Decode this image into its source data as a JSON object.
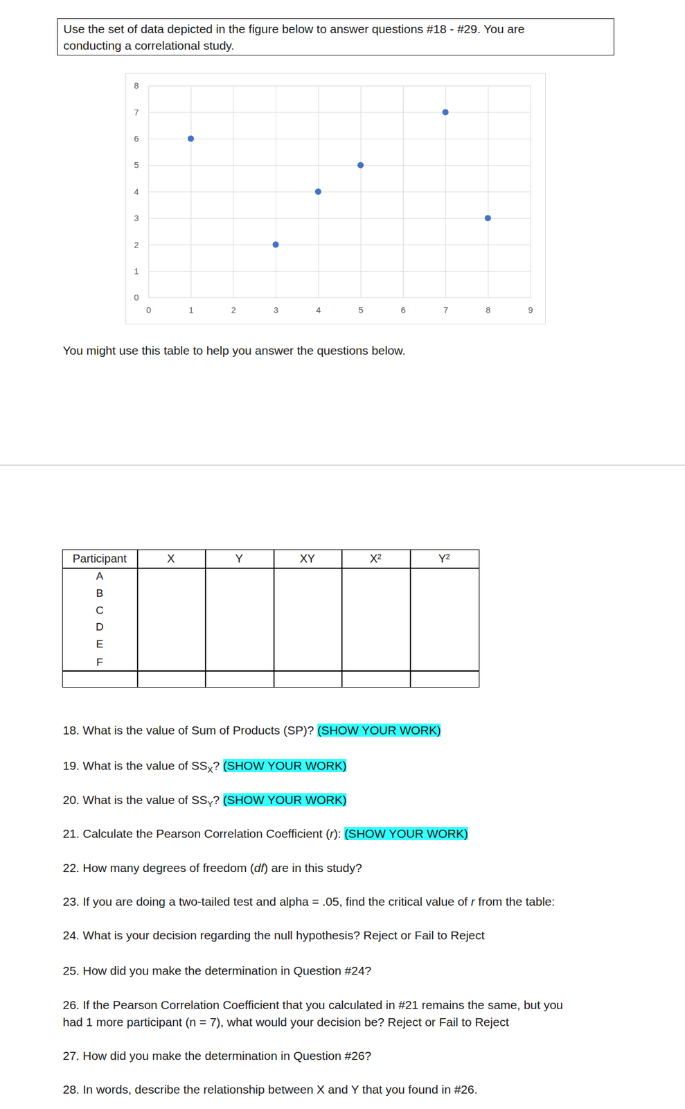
{
  "intro": [
    "Use the set of data depicted in the figure below to answer questions #18 - #29. You are",
    "conducting a correlational study."
  ],
  "chart_data": {
    "type": "scatter",
    "x": [
      1,
      3,
      4,
      5,
      7,
      8
    ],
    "values": [
      6,
      2,
      4,
      5,
      7,
      3
    ],
    "color": "#4472c4",
    "marker": "circle",
    "xlim": [
      0,
      9
    ],
    "ylim": [
      0,
      8
    ],
    "xticks": [
      0,
      1,
      2,
      3,
      4,
      5,
      6,
      7,
      8,
      9
    ],
    "yticks": [
      0,
      1,
      2,
      3,
      4,
      5,
      6,
      7,
      8
    ],
    "grid": true
  },
  "table_note": "You might use this table to help you answer the questions below.",
  "table": {
    "header": [
      "Participant",
      "X",
      "Y",
      "XY",
      "X²",
      "Y²"
    ],
    "rows": [
      [
        "A"
      ],
      [
        "B"
      ],
      [
        "C"
      ],
      [
        "D"
      ],
      [
        "E"
      ],
      [
        "F"
      ]
    ]
  },
  "questions": [
    {
      "lines": [
        [
          {
            "text": "18. What is the value of Sum of Products (SP)? "
          },
          {
            "text": "(SHOW YOUR WORK)",
            "style": "highlight"
          }
        ]
      ]
    },
    {
      "lines": [
        [
          {
            "text": "19. What is the value of SS"
          },
          {
            "text": "X",
            "style": "sub"
          },
          {
            "text": "? "
          },
          {
            "text": "(SHOW YOUR WORK)",
            "style": "highlight"
          }
        ]
      ]
    },
    {
      "lines": [
        [
          {
            "text": "20. What is the value of SS"
          },
          {
            "text": "Y",
            "style": "sub"
          },
          {
            "text": "? "
          },
          {
            "text": "(SHOW YOUR WORK)",
            "style": "highlight"
          }
        ]
      ]
    },
    {
      "lines": [
        [
          {
            "text": "21. Calculate the Pearson Correlation Coefficient ("
          },
          {
            "text": "r",
            "style": "italic"
          },
          {
            "text": "): "
          },
          {
            "text": "(SHOW YOUR WORK)",
            "style": "highlight"
          }
        ]
      ]
    },
    {
      "lines": [
        [
          {
            "text": "22. How many degrees of freedom ("
          },
          {
            "text": "df",
            "style": "italic"
          },
          {
            "text": ") are in this study?"
          }
        ]
      ]
    },
    {
      "lines": [
        [
          {
            "text": "23. If you are doing a two-tailed test and alpha = .05, find the critical value of "
          },
          {
            "text": "r",
            "style": "italic"
          },
          {
            "text": " from the table:"
          }
        ]
      ]
    },
    {
      "lines": [
        [
          {
            "text": "24. What is your decision regarding the null hypothesis? Reject or Fail to Reject"
          }
        ]
      ]
    },
    {
      "lines": [
        [
          {
            "text": "25. How did you make the determination in Question #24?"
          }
        ]
      ]
    },
    {
      "lines": [
        [
          {
            "text": "26. If the Pearson Correlation Coefficient that you calculated in #21 remains the same, but you"
          }
        ],
        [
          {
            "text": "had 1 more participant (n = 7), what would your decision be? Reject or Fail to Reject"
          }
        ]
      ]
    },
    {
      "lines": [
        [
          {
            "text": "27. How did you make the determination in Question #26?"
          }
        ]
      ]
    },
    {
      "lines": [
        [
          {
            "text": "28. In words, describe the relationship between X and Y that you found in #26."
          }
        ]
      ]
    }
  ]
}
